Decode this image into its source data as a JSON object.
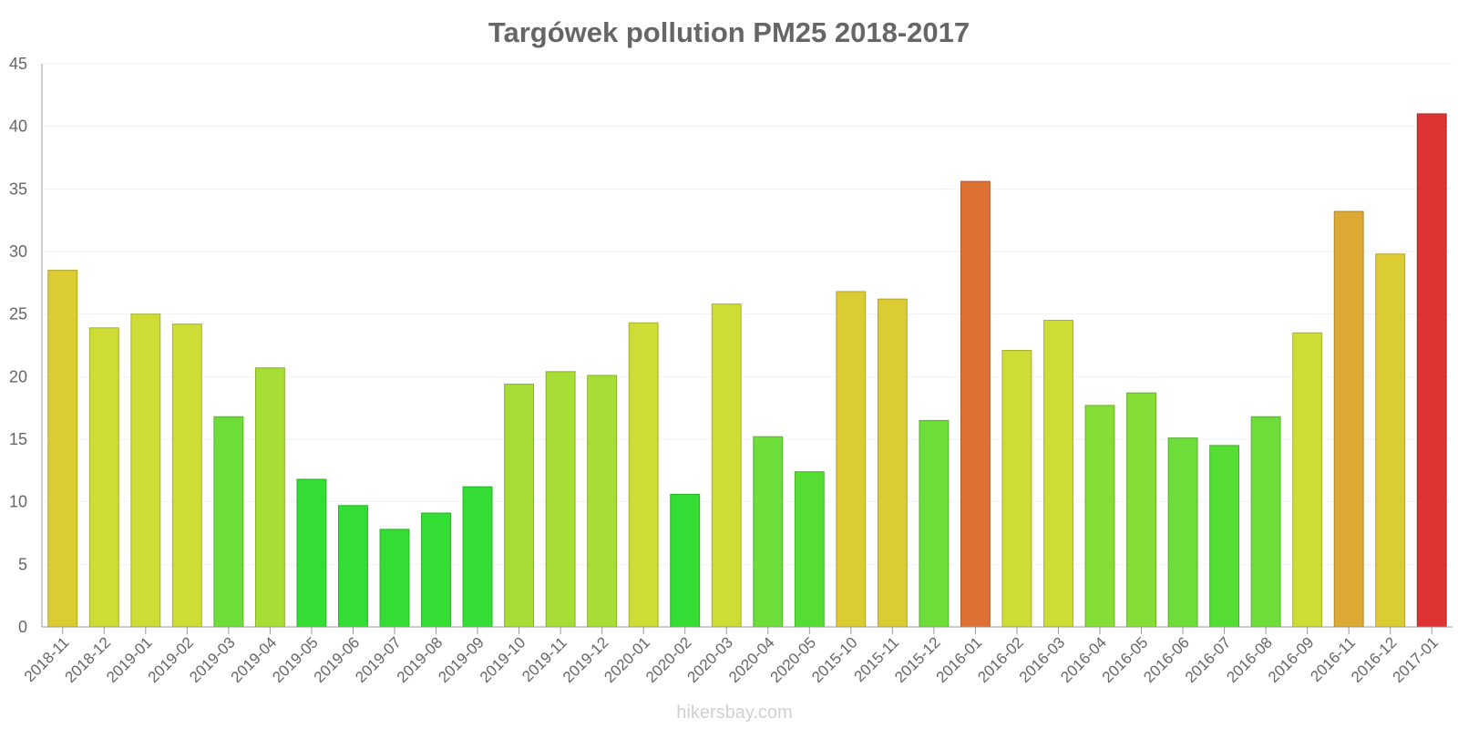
{
  "chart_data": {
    "type": "bar",
    "title": "Targówek pollution PM25 2018-2017",
    "xlabel": "",
    "ylabel": "",
    "ylim": [
      0,
      45
    ],
    "yticks": [
      0,
      5,
      10,
      15,
      20,
      25,
      30,
      35,
      40,
      45
    ],
    "grid": true,
    "categories": [
      "2018-11",
      "2018-12",
      "2019-01",
      "2019-02",
      "2019-03",
      "2019-04",
      "2019-05",
      "2019-06",
      "2019-07",
      "2019-08",
      "2019-09",
      "2019-10",
      "2019-11",
      "2019-12",
      "2020-01",
      "2020-02",
      "2020-03",
      "2020-04",
      "2020-05",
      "2015-10",
      "2015-11",
      "2015-12",
      "2016-01",
      "2016-02",
      "2016-03",
      "2016-04",
      "2016-05",
      "2016-06",
      "2016-07",
      "2016-08",
      "2016-09",
      "2016-11",
      "2016-12",
      "2017-01"
    ],
    "values": [
      28.5,
      23.9,
      25.0,
      24.2,
      16.8,
      20.7,
      11.8,
      9.7,
      7.8,
      9.1,
      11.2,
      19.4,
      20.4,
      20.1,
      24.3,
      10.6,
      25.8,
      15.2,
      12.4,
      26.8,
      26.2,
      16.5,
      35.6,
      22.1,
      24.5,
      17.7,
      18.7,
      15.1,
      14.5,
      16.8,
      23.5,
      33.2,
      29.8,
      41.0
    ],
    "color_scale": [
      {
        "max": 12,
        "color": "#33dd33"
      },
      {
        "max": 15,
        "color": "#55dd33"
      },
      {
        "max": 17,
        "color": "#6edd3a"
      },
      {
        "max": 19,
        "color": "#86dd36"
      },
      {
        "max": 22,
        "color": "#a8dd36"
      },
      {
        "max": 26,
        "color": "#cedd36"
      },
      {
        "max": 30,
        "color": "#dccc33"
      },
      {
        "max": 34,
        "color": "#dda833"
      },
      {
        "max": 38,
        "color": "#dd7033"
      },
      {
        "max": 100,
        "color": "#dd3333"
      }
    ]
  },
  "watermark": "hikersbay.com"
}
